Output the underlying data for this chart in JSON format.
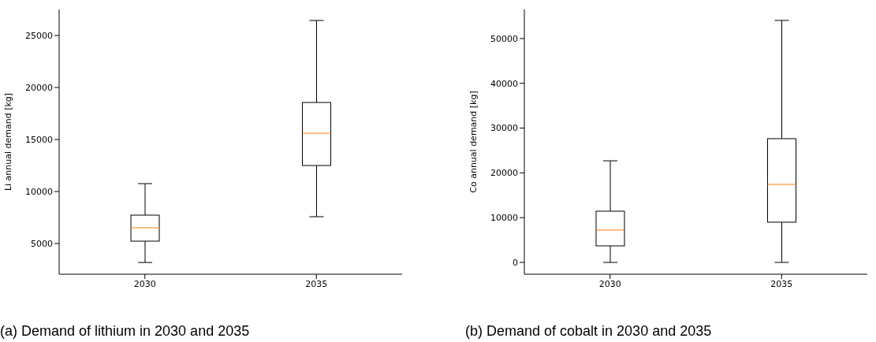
{
  "chart_data": [
    {
      "type": "box",
      "categories": [
        "2030",
        "2035"
      ],
      "ylabel": "Li annual demand [kg]",
      "ylim": [
        2050,
        27500
      ],
      "yticks": [
        5000,
        10000,
        15000,
        20000,
        25000
      ],
      "boxes": [
        {
          "low": 3180,
          "q1": 5230,
          "median": 6520,
          "q3": 7730,
          "high": 10760
        },
        {
          "low": 7580,
          "q1": 12500,
          "median": 15600,
          "q3": 18560,
          "high": 26440
        }
      ],
      "annotations": [
        "(a) Demand of lithium in 2030 and 2035"
      ]
    },
    {
      "type": "box",
      "categories": [
        "2030",
        "2035"
      ],
      "ylabel": "Co annual demand [kg]",
      "ylim": [
        -2640,
        56500
      ],
      "yticks": [
        0,
        10000,
        20000,
        30000,
        40000,
        50000
      ],
      "boxes": [
        {
          "low": 0,
          "q1": 3700,
          "median": 7220,
          "q3": 11440,
          "high": 22700
        },
        {
          "low": 0,
          "q1": 8980,
          "median": 17430,
          "q3": 27640,
          "high": 54050
        }
      ],
      "annotations": [
        "(b) Demand of cobalt in 2030 and 2035"
      ]
    }
  ]
}
